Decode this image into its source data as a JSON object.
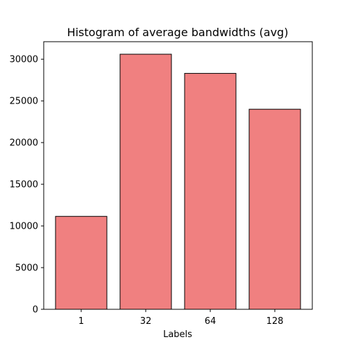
{
  "chart_data": {
    "type": "bar",
    "title": "Histogram of average bandwidths (avg)",
    "xlabel": "Labels",
    "ylabel": "",
    "categories": [
      "1",
      "32",
      "64",
      "128"
    ],
    "values": [
      11150,
      30600,
      28300,
      24000
    ],
    "ylim": [
      0,
      32100
    ],
    "yticks": [
      0,
      5000,
      10000,
      15000,
      20000,
      25000,
      30000
    ],
    "ytick_labels": [
      "0",
      "5000",
      "10000",
      "15000",
      "20000",
      "25000",
      "30000"
    ],
    "bar_color": "#f08080",
    "edge_color": "#000000",
    "grid": false,
    "legend": "none"
  }
}
